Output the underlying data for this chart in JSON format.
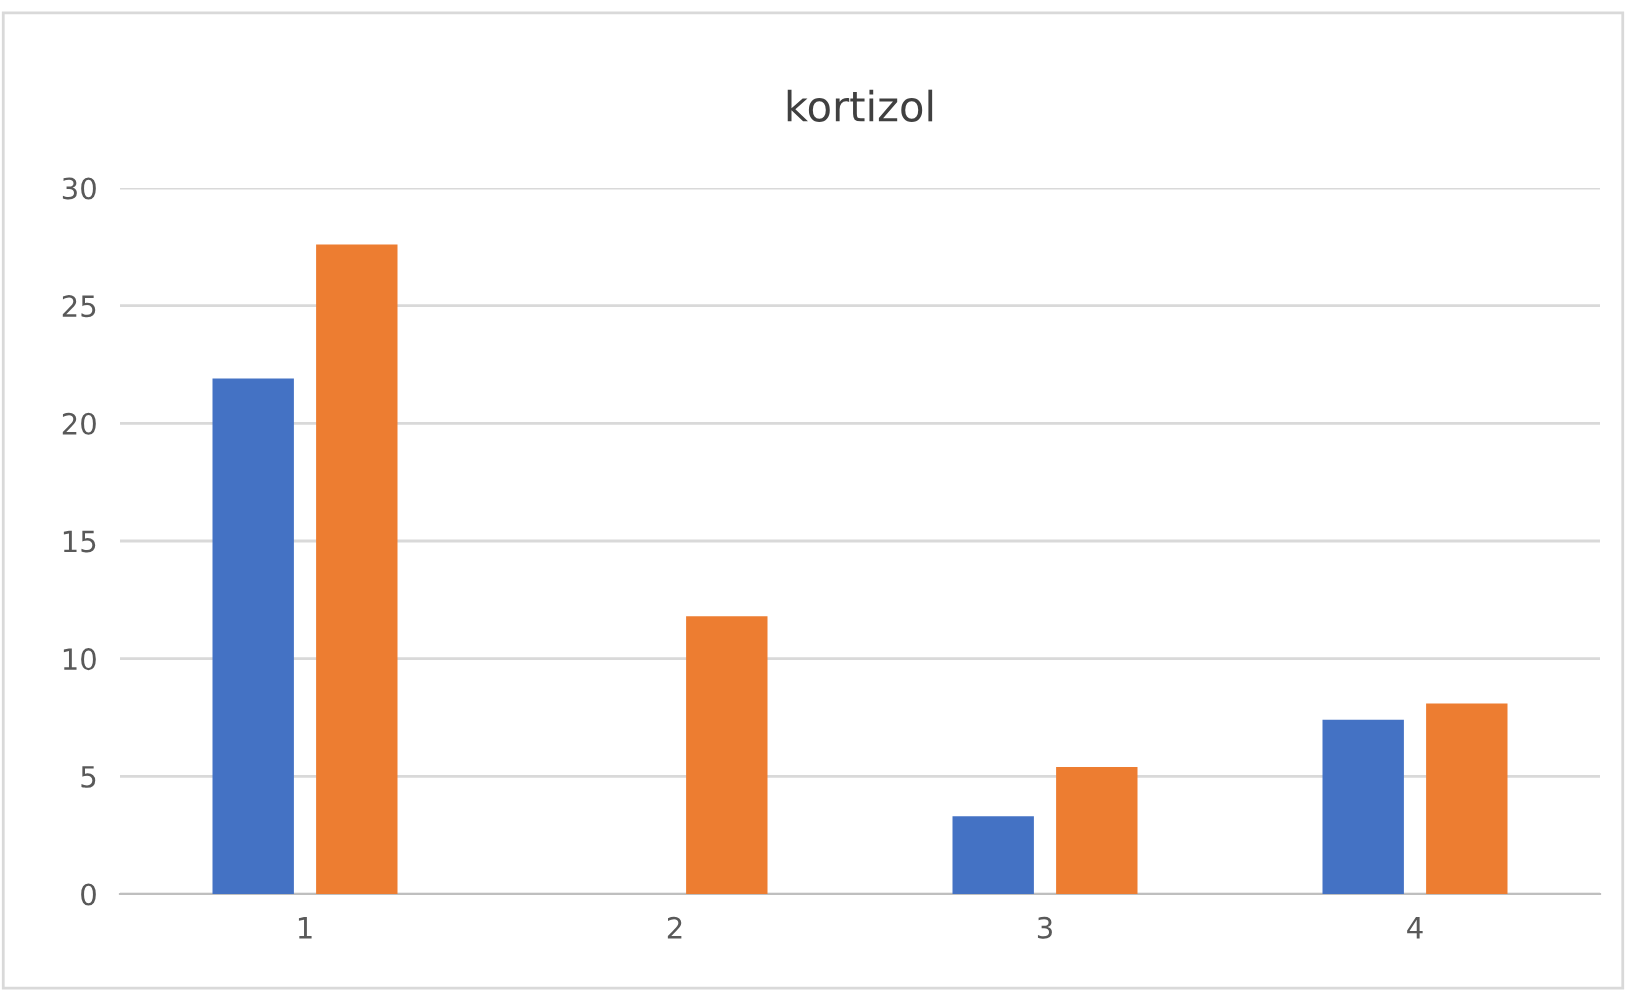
{
  "chart_data": {
    "type": "bar",
    "title": "kortizol",
    "categories": [
      "1",
      "2",
      "3",
      "4"
    ],
    "series": [
      {
        "color": "#4472c4",
        "values": [
          21.9,
          null,
          3.3,
          7.4
        ]
      },
      {
        "color": "#ed7d31",
        "values": [
          27.6,
          11.8,
          5.4,
          8.1
        ]
      }
    ],
    "ylim": [
      0,
      30
    ],
    "yticks": [
      0,
      5,
      10,
      15,
      20,
      25,
      30
    ],
    "grid": "y",
    "legend": false
  }
}
